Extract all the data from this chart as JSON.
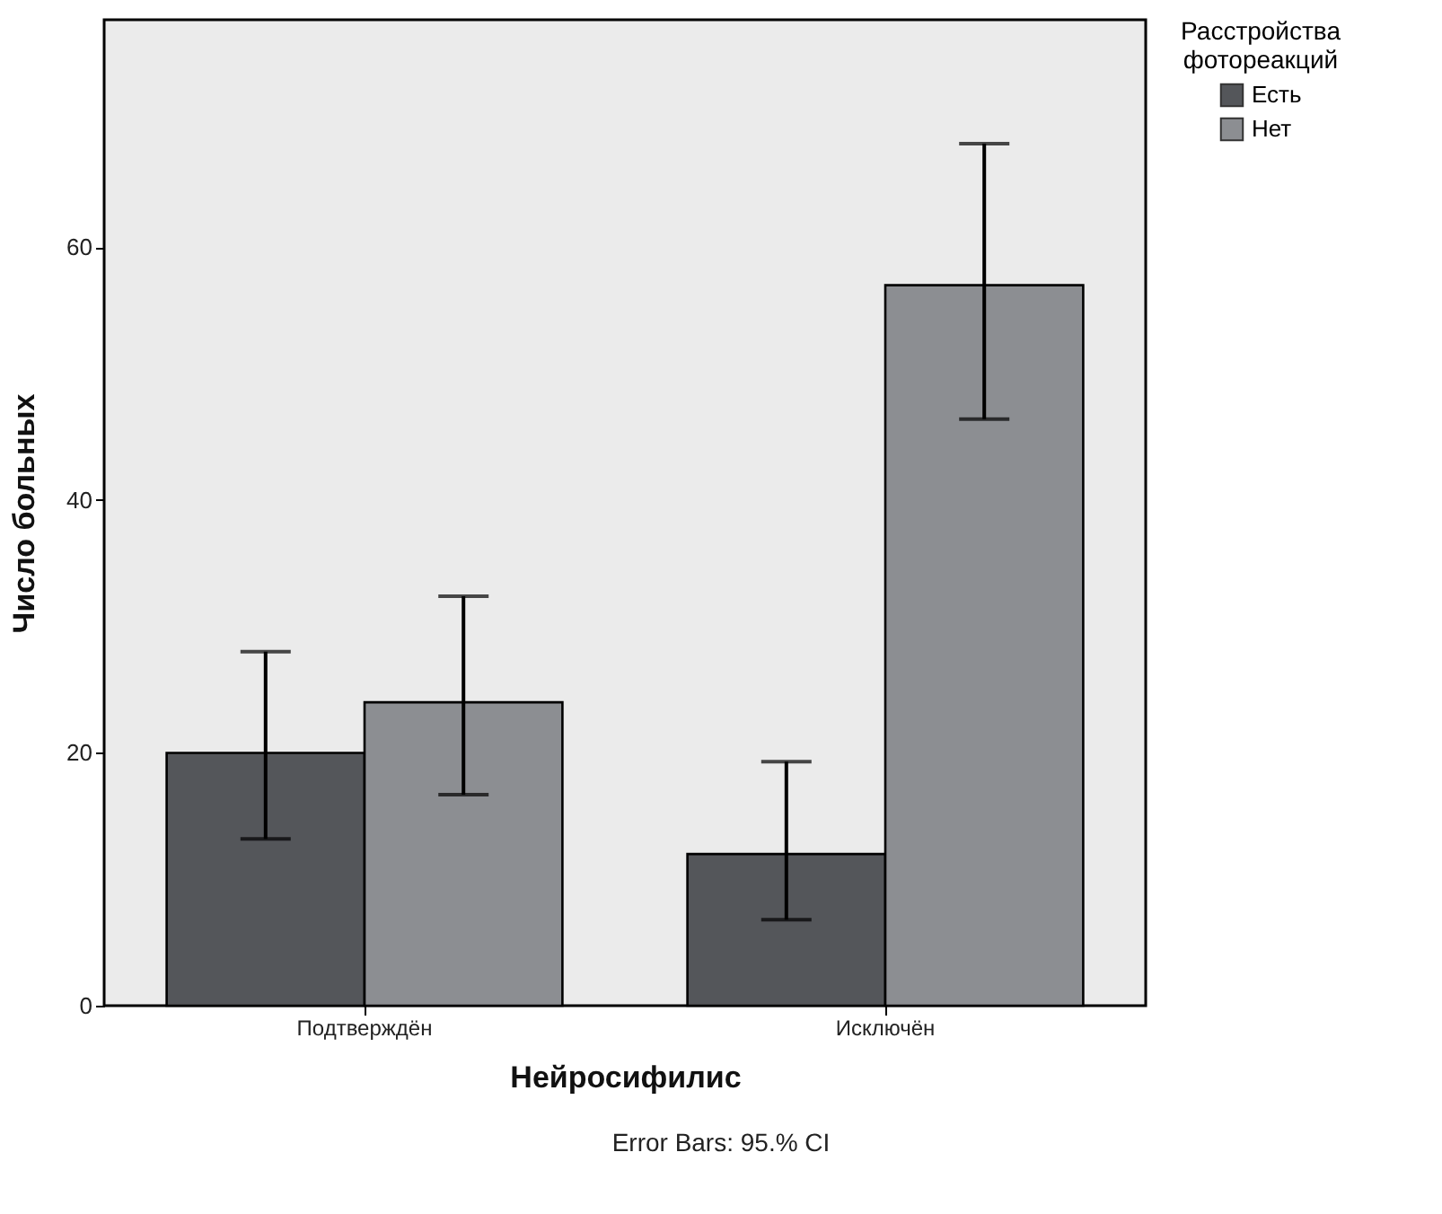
{
  "chart_data": {
    "type": "bar",
    "xlabel": "Нейросифилис",
    "ylabel": "Число больных",
    "legend_title": "Расстройства фотореакций",
    "categories": [
      "Подтверждён",
      "Исключён"
    ],
    "series": [
      {
        "name": "Есть",
        "color": "#54565a",
        "values": [
          20,
          12
        ],
        "errors": [
          [
            13.2,
            28.0
          ],
          [
            6.8,
            19.3
          ]
        ]
      },
      {
        "name": "Нет",
        "color": "#8c8e92",
        "values": [
          24,
          57
        ],
        "errors": [
          [
            16.7,
            32.4
          ],
          [
            46.4,
            68.2
          ]
        ]
      }
    ],
    "ylim": [
      0,
      78
    ],
    "yticks": [
      0,
      20,
      40,
      60
    ],
    "grid": false,
    "legend": "top right",
    "annotations": [
      "Error Bars: 95.% CI"
    ]
  }
}
